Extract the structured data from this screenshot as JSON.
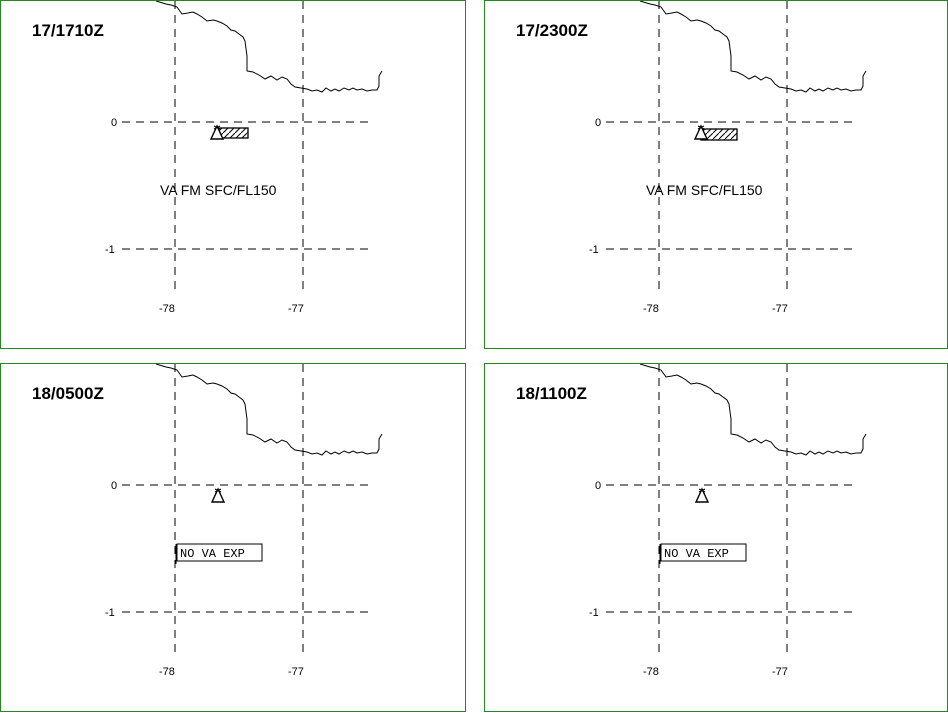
{
  "panels": [
    {
      "time": "17/1710Z",
      "label": "VA FM SFC/FL150",
      "label_type": "ash",
      "ash_area": true
    },
    {
      "time": "17/2300Z",
      "label": "VA FM SFC/FL150",
      "label_type": "ash",
      "ash_area": true
    },
    {
      "time": "18/0500Z",
      "label": "NO VA EXP",
      "label_type": "none",
      "ash_area": false
    },
    {
      "time": "18/1100Z",
      "label": "NO VA EXP",
      "label_type": "none",
      "ash_area": false
    }
  ],
  "axes": {
    "lat_labels": [
      "0",
      "-1"
    ],
    "lon_labels": [
      "-78",
      "-77"
    ]
  },
  "volcano_icon": "volcano-triangle-icon",
  "colors": {
    "panel_border": "#1f8a1f",
    "lines": "#000000"
  }
}
